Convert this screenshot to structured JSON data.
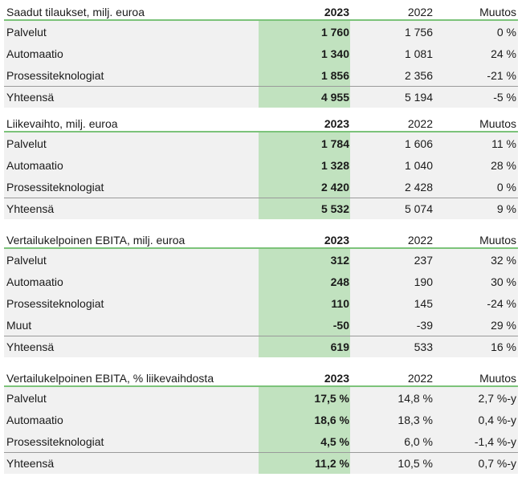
{
  "tables": [
    {
      "title": "Saadut tilaukset, milj. euroa",
      "col_2023": "2023",
      "col_2022": "2022",
      "col_muutos": "Muutos",
      "rows": [
        {
          "label": "Palvelut",
          "v2023": "1 760",
          "v2022": "1 756",
          "muutos": "0 %"
        },
        {
          "label": "Automaatio",
          "v2023": "1 340",
          "v2022": "1 081",
          "muutos": "24 %"
        },
        {
          "label": "Prosessiteknologiat",
          "v2023": "1 856",
          "v2022": "2 356",
          "muutos": "-21 %"
        }
      ],
      "total": {
        "label": "Yhteensä",
        "v2023": "4 955",
        "v2022": "5 194",
        "muutos": "-5 %"
      }
    },
    {
      "title": "Liikevaihto, milj. euroa",
      "col_2023": "2023",
      "col_2022": "2022",
      "col_muutos": "Muutos",
      "rows": [
        {
          "label": "Palvelut",
          "v2023": "1 784",
          "v2022": "1 606",
          "muutos": "11 %"
        },
        {
          "label": "Automaatio",
          "v2023": "1 328",
          "v2022": "1 040",
          "muutos": "28 %"
        },
        {
          "label": "Prosessiteknologiat",
          "v2023": "2 420",
          "v2022": "2 428",
          "muutos": "0 %"
        }
      ],
      "total": {
        "label": "Yhteensä",
        "v2023": "5 532",
        "v2022": "5 074",
        "muutos": "9 %"
      }
    },
    {
      "title": "Vertailukelpoinen EBITA, milj. euroa",
      "col_2023": "2023",
      "col_2022": "2022",
      "col_muutos": "Muutos",
      "rows": [
        {
          "label": "Palvelut",
          "v2023": "312",
          "v2022": "237",
          "muutos": "32 %"
        },
        {
          "label": "Automaatio",
          "v2023": "248",
          "v2022": "190",
          "muutos": "30 %"
        },
        {
          "label": "Prosessiteknologiat",
          "v2023": "110",
          "v2022": "145",
          "muutos": "-24 %"
        },
        {
          "label": "Muut",
          "v2023": "-50",
          "v2022": "-39",
          "muutos": "29 %"
        }
      ],
      "total": {
        "label": "Yhteensä",
        "v2023": "619",
        "v2022": "533",
        "muutos": "16 %"
      }
    },
    {
      "title": "Vertailukelpoinen EBITA, % liikevaihdosta",
      "col_2023": "2023",
      "col_2022": "2022",
      "col_muutos": "Muutos",
      "rows": [
        {
          "label": "Palvelut",
          "v2023": "17,5 %",
          "v2022": "14,8 %",
          "muutos": "2,7 %-y"
        },
        {
          "label": "Automaatio",
          "v2023": "18,6 %",
          "v2022": "18,3 %",
          "muutos": "0,4 %-y"
        },
        {
          "label": "Prosessiteknologiat",
          "v2023": "4,5 %",
          "v2022": "6,0 %",
          "muutos": "-1,4 %-y"
        }
      ],
      "total": {
        "label": "Yhteensä",
        "v2023": "11,2 %",
        "v2022": "10,5 %",
        "muutos": "0,7 %-y"
      }
    }
  ]
}
